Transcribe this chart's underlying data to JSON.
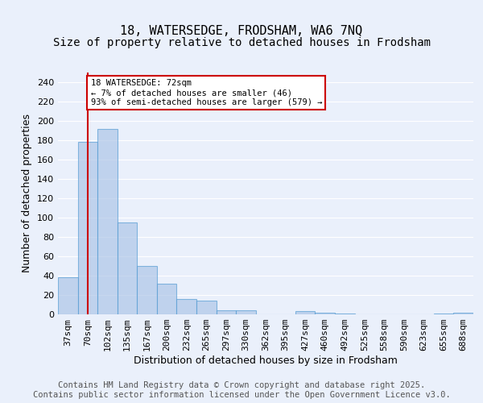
{
  "title_line1": "18, WATERSEDGE, FRODSHAM, WA6 7NQ",
  "title_line2": "Size of property relative to detached houses in Frodsham",
  "xlabel": "Distribution of detached houses by size in Frodsham",
  "ylabel": "Number of detached properties",
  "bin_labels": [
    "37sqm",
    "70sqm",
    "102sqm",
    "135sqm",
    "167sqm",
    "200sqm",
    "232sqm",
    "265sqm",
    "297sqm",
    "330sqm",
    "362sqm",
    "395sqm",
    "427sqm",
    "460sqm",
    "492sqm",
    "525sqm",
    "558sqm",
    "590sqm",
    "623sqm",
    "655sqm",
    "688sqm"
  ],
  "bar_heights": [
    38,
    178,
    192,
    95,
    50,
    32,
    16,
    14,
    4,
    4,
    0,
    0,
    3,
    2,
    1,
    0,
    0,
    0,
    0,
    1,
    2
  ],
  "bar_color": "#aec6e8",
  "bar_edge_color": "#5a9fd4",
  "bar_alpha": 0.7,
  "vline_x": 1.0,
  "vline_color": "#cc0000",
  "annotation_text": "18 WATERSEDGE: 72sqm\n← 7% of detached houses are smaller (46)\n93% of semi-detached houses are larger (579) →",
  "annotation_box_color": "#cc0000",
  "annotation_text_color": "#000000",
  "ylim": [
    0,
    250
  ],
  "yticks": [
    0,
    20,
    40,
    60,
    80,
    100,
    120,
    140,
    160,
    180,
    200,
    220,
    240
  ],
  "background_color": "#eaf0fb",
  "plot_bg_color": "#eaf0fb",
  "footer_text": "Contains HM Land Registry data © Crown copyright and database right 2025.\nContains public sector information licensed under the Open Government Licence v3.0.",
  "grid_color": "#ffffff",
  "title_fontsize": 11,
  "subtitle_fontsize": 10,
  "axis_label_fontsize": 9,
  "tick_fontsize": 8,
  "footer_fontsize": 7.5
}
